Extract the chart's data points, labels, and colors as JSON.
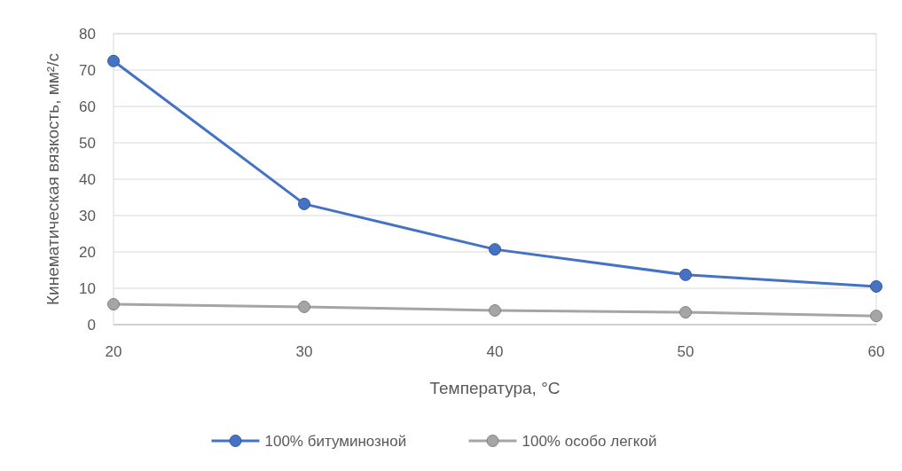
{
  "chart_data": {
    "type": "line",
    "xlabel": "Температура, °С",
    "ylabel": "Кинематическая вязкость, мм²/с",
    "x": [
      20,
      30,
      40,
      50,
      60
    ],
    "series": [
      {
        "name": "100% битуминозной",
        "color": "#4472c4",
        "values": [
          72.5,
          33.2,
          20.7,
          13.7,
          10.5
        ]
      },
      {
        "name": "100% особо легкой",
        "color": "#a5a5a5",
        "values": [
          5.6,
          4.9,
          3.9,
          3.4,
          2.4
        ]
      }
    ],
    "xlim": [
      20,
      60
    ],
    "xticks": [
      20,
      30,
      40,
      50,
      60
    ],
    "ylim": [
      0,
      80
    ],
    "yticks": [
      0,
      10,
      20,
      30,
      40,
      50,
      60,
      70,
      80
    ],
    "grid": "y",
    "legend": "bottom",
    "marker": "circle",
    "line_style": "solid"
  }
}
